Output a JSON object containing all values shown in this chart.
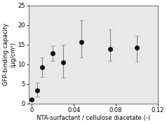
{
  "x": [
    0.0,
    0.005,
    0.01,
    0.02,
    0.03,
    0.047,
    0.075,
    0.1
  ],
  "y": [
    1.0,
    3.3,
    9.3,
    12.8,
    10.5,
    15.7,
    13.9,
    14.2
  ],
  "yerr_lower": [
    0.3,
    1.5,
    2.5,
    2.0,
    4.0,
    4.0,
    3.0,
    3.5
  ],
  "yerr_upper": [
    0.3,
    2.0,
    2.5,
    2.0,
    4.5,
    5.5,
    5.0,
    3.0
  ],
  "xlabel": "NTA-surfactant / cellulose diacetate (-)",
  "ylabel": "GFP-binding capacity\n(μg/cm²)",
  "xlim": [
    -0.003,
    0.12
  ],
  "ylim": [
    0,
    25
  ],
  "yticks": [
    0,
    5,
    10,
    15,
    20,
    25
  ],
  "xticks": [
    0,
    0.04,
    0.08,
    0.12
  ],
  "marker_color": "#111111",
  "marker_size": 4.5,
  "capsize": 2,
  "ecolor": "#888888",
  "elinewidth": 0.8,
  "bg_color": "#e8e8e8",
  "label_fontsize": 6.0,
  "tick_fontsize": 6.0
}
